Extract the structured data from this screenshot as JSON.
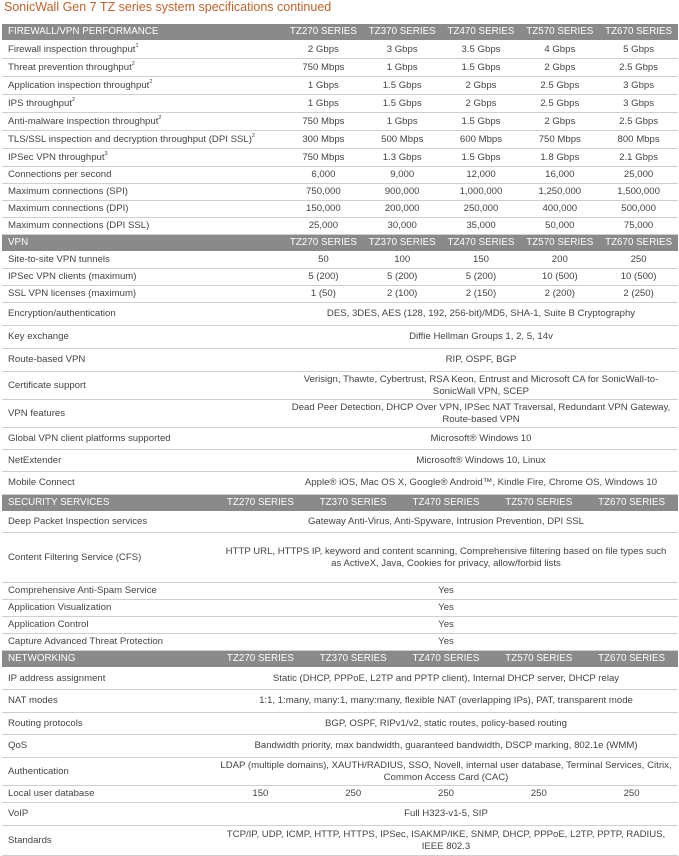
{
  "title": "SonicWall Gen 7 TZ series system specifications continued",
  "sections": [
    {
      "id": "firewall",
      "heading": "FIREWALL/VPN PERFORMANCE",
      "columns": [
        "TZ270 SERIES",
        "TZ370 SERIES",
        "TZ470 SERIES",
        "TZ570 SERIES",
        "TZ670 SERIES"
      ],
      "rows": [
        {
          "label": "Firewall inspection throughput",
          "sup": "1",
          "values": [
            "2 Gbps",
            "3 Gbps",
            "3.5 Gbps",
            "4 Gbps",
            "5 Gbps"
          ]
        },
        {
          "label": "Threat prevention throughput",
          "sup": "2",
          "values": [
            "750 Mbps",
            "1 Gbps",
            "1.5 Gbps",
            "2 Gbps",
            "2.5 Gbps"
          ]
        },
        {
          "label": "Application inspection throughput",
          "sup": "2",
          "values": [
            "1 Gbps",
            "1.5 Gbps",
            "2 Gbps",
            "2.5 Gbps",
            "3 Gbps"
          ]
        },
        {
          "label": "IPS throughput",
          "sup": "2",
          "values": [
            "1 Gbps",
            "1.5 Gbps",
            "2 Gbps",
            "2.5 Gbps",
            "3 Gbps"
          ]
        },
        {
          "label": "Anti-malware inspection throughput",
          "sup": "2",
          "values": [
            "750 Mbps",
            "1 Gbps",
            "1.5 Gbps",
            "2 Gbps",
            "2.5 Gbps"
          ]
        },
        {
          "label": "TLS/SSL inspection and decryption throughput (DPI SSL)",
          "sup": "2",
          "values": [
            "300 Mbps",
            "500 Mbps",
            "600 Mbps",
            "750 Mbps",
            "800 Mbps"
          ]
        },
        {
          "label": "IPSec VPN throughput",
          "sup": "3",
          "values": [
            "750 Mbps",
            "1.3 Gbps",
            "1.5 Gbps",
            "1.8 Gbps",
            "2.1 Gbps"
          ]
        },
        {
          "label": "Connections per second",
          "values": [
            "6,000",
            "9,000",
            "12,000",
            "16,000",
            "25,000"
          ]
        },
        {
          "label": "Maximum connections (SPI)",
          "values": [
            "750,000",
            "900,000",
            "1,000,000",
            "1,250,000",
            "1,500,000"
          ]
        },
        {
          "label": "Maximum connections (DPI)",
          "values": [
            "150,000",
            "200,000",
            "250,000",
            "400,000",
            "500,000"
          ]
        },
        {
          "label": "Maximum connections (DPI SSL)",
          "values": [
            "25,000",
            "30,000",
            "35,000",
            "50,000",
            "75,000"
          ]
        }
      ]
    },
    {
      "id": "vpn",
      "heading": "VPN",
      "columns": [
        "TZ270 SERIES",
        "TZ370 SERIES",
        "TZ470 SERIES",
        "TZ570 SERIES",
        "TZ670 SERIES"
      ],
      "rows": [
        {
          "label": "Site-to-site VPN tunnels",
          "values": [
            "50",
            "100",
            "150",
            "200",
            "250"
          ]
        },
        {
          "label": "IPSec VPN clients (maximum)",
          "values": [
            "5 (200)",
            "5 (200)",
            "5 (200)",
            "10 (500)",
            "10 (500)"
          ]
        },
        {
          "label": "SSL VPN licenses (maximum)",
          "values": [
            "1 (50)",
            "2 (100)",
            "2 (150)",
            "2 (200)",
            "2 (250)"
          ]
        },
        {
          "label": "Encryption/authentication",
          "value": "DES, 3DES, AES (128, 192, 256-bit)/MD5, SHA-1, Suite B Cryptography"
        },
        {
          "label": "Key exchange",
          "value": "Diffie Hellman Groups 1, 2, 5, 14v"
        },
        {
          "label": "Route-based VPN",
          "value": "RIP, OSPF, BGP"
        },
        {
          "label": "Certificate support",
          "value": "Verisign, Thawte, Cybertrust, RSA Keon, Entrust and Microsoft CA for SonicWall-to-SonicWall VPN, SCEP"
        },
        {
          "label": "VPN features",
          "value": "Dead Peer Detection, DHCP Over VPN, IPSec NAT Traversal, Redundant VPN Gateway, Route-based VPN"
        },
        {
          "label": "Global VPN client platforms supported",
          "value": "Microsoft® Windows 10"
        },
        {
          "label": "NetExtender",
          "value": "Microsoft® Windows 10, Linux"
        },
        {
          "label": "Mobile Connect",
          "value": "Apple® iOS, Mac OS X, Google® Android™, Kindle Fire, Chrome OS, Windows 10"
        }
      ]
    },
    {
      "id": "security",
      "heading": "SECURITY SERVICES",
      "columns": [
        "TZ270 SERIES",
        "TZ370 SERIES",
        "TZ470 SERIES",
        "TZ570 SERIES",
        "TZ670 SERIES"
      ],
      "rows": [
        {
          "label": "Deep Packet Inspection services",
          "value": "Gateway Anti-Virus, Anti-Spyware, Intrusion Prevention, DPI SSL"
        },
        {
          "label": "Content Filtering Service (CFS)",
          "value": "HTTP URL, HTTPS IP, keyword and content scanning, Comprehensive filtering based on file types such as ActiveX, Java, Cookies for privacy, allow/forbid lists"
        },
        {
          "label": "Comprehensive Anti-Spam Service",
          "value": "Yes"
        },
        {
          "label": "Application Visualization",
          "value": "Yes"
        },
        {
          "label": "Application Control",
          "value": "Yes"
        },
        {
          "label": "Capture Advanced Threat Protection",
          "value": "Yes"
        }
      ]
    },
    {
      "id": "networking",
      "heading": "NETWORKING",
      "columns": [
        "TZ270 SERIES",
        "TZ370 SERIES",
        "TZ470 SERIES",
        "TZ570 SERIES",
        "TZ670 SERIES"
      ],
      "rows": [
        {
          "label": "IP address assignment",
          "value": "Static (DHCP, PPPoE, L2TP and PPTP client), Internal DHCP server, DHCP relay"
        },
        {
          "label": "NAT modes",
          "value": "1:1, 1:many, many:1, many:many, flexible NAT (overlapping IPs), PAT, transparent mode"
        },
        {
          "label": "Routing protocols",
          "value": "BGP, OSPF, RIPv1/v2, static routes, policy-based routing"
        },
        {
          "label": "QoS",
          "value": "Bandwidth priority, max bandwidth, guaranteed bandwidth, DSCP marking, 802.1e (WMM)"
        },
        {
          "label": "Authentication",
          "value": "LDAP (multiple domains), XAUTH/RADIUS, SSO, Novell, internal user database, Terminal Services, Citrix, Common Access Card (CAC)"
        },
        {
          "label": "Local user database",
          "values": [
            "150",
            "250",
            "250",
            "250",
            "250"
          ]
        },
        {
          "label": "VoIP",
          "value": "Full H323-v1-5, SIP"
        },
        {
          "label": "Standards",
          "value": "TCP/IP, UDP, ICMP, HTTP, HTTPS, IPSec, ISAKMP/IKE, SNMP, DHCP, PPPoE, L2TP, PPTP, RADIUS, IEEE 802.3"
        }
      ]
    }
  ]
}
